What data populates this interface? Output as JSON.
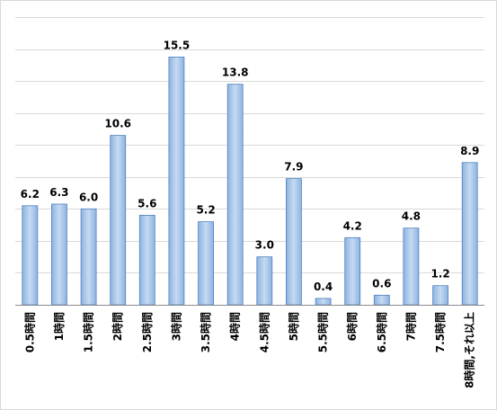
{
  "chart_data": {
    "type": "bar",
    "title": "",
    "xlabel": "",
    "ylabel": "",
    "categories": [
      "0.5時間",
      "1時間",
      "1.5時間",
      "2時間",
      "2.5時間",
      "3時間",
      "3.5時間",
      "4時間",
      "4.5時間",
      "5時間",
      "5.5時間",
      "6時間",
      "6.5時間",
      "7時間",
      "7.5時間",
      "8時間,それ以上"
    ],
    "values": [
      6.2,
      6.3,
      6.0,
      10.6,
      5.6,
      15.5,
      5.2,
      13.8,
      3.0,
      7.9,
      0.4,
      4.2,
      0.6,
      4.8,
      1.2,
      8.9
    ],
    "value_labels": [
      "6.2",
      "6.3",
      "6.0",
      "10.6",
      "5.6",
      "15.5",
      "5.2",
      "13.8",
      "3.0",
      "7.9",
      "0.4",
      "4.2",
      "0.6",
      "4.8",
      "1.2",
      "8.9"
    ],
    "ylim": [
      0,
      18
    ],
    "gridlines": "horizontal, every 2 units",
    "legend": "none",
    "tick_labels_y": "none",
    "colors": {
      "bar_fill_light": "#c6daf1",
      "bar_fill_dark": "#8db3e2",
      "bar_stroke": "#4f81bd",
      "gridline": "#d9d9d9",
      "axis": "#8c8c8c"
    }
  }
}
